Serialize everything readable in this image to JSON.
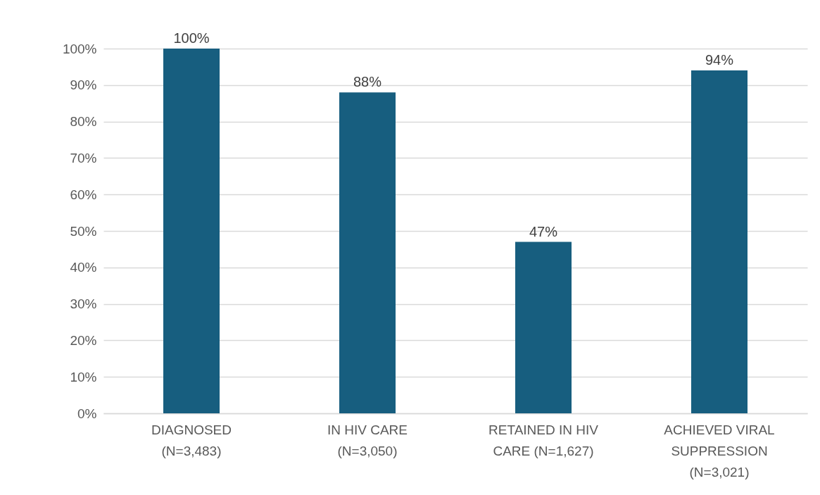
{
  "chart_data": {
    "type": "bar",
    "categories": [
      "DIAGNOSED (N=3,483)",
      "IN HIV CARE (N=3,050)",
      "RETAINED IN HIV CARE (N=1,627)",
      "ACHIEVED VIRAL SUPPRESSION (N=3,021)"
    ],
    "values": [
      100,
      88,
      47,
      94
    ],
    "value_labels": [
      "100%",
      "88%",
      "47%",
      "94%"
    ],
    "color": "#175e7f",
    "ylim": [
      0,
      100
    ],
    "yticks": [
      {
        "value": 0,
        "label": "0%"
      },
      {
        "value": 10,
        "label": "10%"
      },
      {
        "value": 20,
        "label": "20%"
      },
      {
        "value": 30,
        "label": "30%"
      },
      {
        "value": 40,
        "label": "40%"
      },
      {
        "value": 50,
        "label": "50%"
      },
      {
        "value": 60,
        "label": "60%"
      },
      {
        "value": 70,
        "label": "70%"
      },
      {
        "value": 80,
        "label": "80%"
      },
      {
        "value": 90,
        "label": "90%"
      },
      {
        "value": 100,
        "label": "100%"
      }
    ],
    "grid": "y"
  }
}
